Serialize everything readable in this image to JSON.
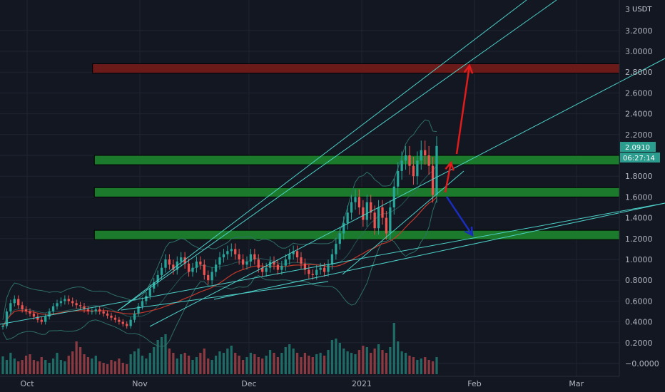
{
  "chart_data": {
    "type": "candlestick",
    "quote_unit": "USDT",
    "axis_max_label": "3",
    "price_label": "2.0910",
    "countdown_label": "06:27:14",
    "y_ticks": [
      3.2,
      3.0,
      2.8,
      2.6,
      2.4,
      2.2,
      2.0,
      1.8,
      1.6,
      1.4,
      1.2,
      1.0,
      0.8,
      0.6,
      0.4,
      0.2,
      -0.0
    ],
    "y_tick_labels": [
      "3.2000",
      "3.0000",
      "2.8000",
      "2.6000",
      "2.4000",
      "2.2000",
      "2.0000",
      "1.8000",
      "1.6000",
      "1.4000",
      "1.2000",
      "1.0000",
      "0.8000",
      "0.6000",
      "0.4000",
      "0.2000",
      "−0.0000"
    ],
    "ylim": [
      -0.12,
      3.4
    ],
    "x_ticks": [
      {
        "label": "Oct",
        "day": 0
      },
      {
        "label": "Nov",
        "day": 31
      },
      {
        "label": "Dec",
        "day": 61
      },
      {
        "label": "2021",
        "day": 92
      },
      {
        "label": "Feb",
        "day": 123
      },
      {
        "label": "Mar",
        "day": 151
      }
    ],
    "xlim_days": [
      -6,
      165
    ],
    "last_price": 2.091,
    "candle_closes": [
      0.36,
      0.5,
      0.58,
      0.62,
      0.56,
      0.52,
      0.5,
      0.48,
      0.45,
      0.42,
      0.4,
      0.45,
      0.5,
      0.55,
      0.58,
      0.6,
      0.62,
      0.6,
      0.58,
      0.56,
      0.55,
      0.52,
      0.5,
      0.5,
      0.52,
      0.5,
      0.48,
      0.46,
      0.44,
      0.42,
      0.4,
      0.38,
      0.36,
      0.42,
      0.48,
      0.55,
      0.6,
      0.65,
      0.72,
      0.78,
      0.85,
      0.92,
      1.0,
      0.95,
      0.9,
      0.98,
      1.02,
      0.96,
      0.88,
      0.92,
      0.98,
      0.95,
      0.85,
      0.8,
      0.88,
      0.95,
      1.02,
      1.05,
      1.08,
      1.1,
      1.05,
      1.0,
      0.95,
      0.98,
      1.05,
      1.0,
      0.92,
      0.88,
      0.92,
      0.98,
      0.95,
      0.9,
      0.94,
      1.0,
      1.05,
      1.08,
      1.02,
      0.96,
      0.9,
      0.86,
      0.85,
      0.9,
      0.92,
      0.88,
      0.95,
      1.05,
      1.15,
      1.25,
      1.35,
      1.45,
      1.55,
      1.6,
      1.5,
      1.38,
      1.55,
      1.45,
      1.3,
      1.5,
      1.4,
      1.25,
      1.5,
      1.7,
      1.85,
      1.95,
      2.0,
      1.9,
      1.8,
      1.95,
      2.05,
      2.0,
      1.9,
      1.62,
      2.09
    ],
    "volumes": [
      0.25,
      0.2,
      0.3,
      0.22,
      0.18,
      0.2,
      0.26,
      0.28,
      0.2,
      0.18,
      0.24,
      0.2,
      0.16,
      0.22,
      0.3,
      0.2,
      0.18,
      0.26,
      0.32,
      0.46,
      0.38,
      0.28,
      0.24,
      0.22,
      0.26,
      0.18,
      0.16,
      0.14,
      0.2,
      0.18,
      0.22,
      0.16,
      0.14,
      0.28,
      0.32,
      0.36,
      0.26,
      0.22,
      0.3,
      0.38,
      0.48,
      0.52,
      0.56,
      0.36,
      0.3,
      0.22,
      0.28,
      0.3,
      0.26,
      0.2,
      0.24,
      0.3,
      0.36,
      0.22,
      0.2,
      0.26,
      0.32,
      0.3,
      0.36,
      0.4,
      0.3,
      0.26,
      0.2,
      0.24,
      0.3,
      0.28,
      0.24,
      0.22,
      0.26,
      0.34,
      0.3,
      0.24,
      0.3,
      0.38,
      0.42,
      0.36,
      0.3,
      0.24,
      0.3,
      0.26,
      0.24,
      0.28,
      0.3,
      0.26,
      0.34,
      0.48,
      0.5,
      0.44,
      0.36,
      0.32,
      0.3,
      0.28,
      0.34,
      0.4,
      0.38,
      0.3,
      0.36,
      0.42,
      0.34,
      0.3,
      0.38,
      0.72,
      0.46,
      0.32,
      0.3,
      0.26,
      0.24,
      0.2,
      0.22,
      0.24,
      0.2,
      0.18,
      0.24
    ],
    "zones": [
      {
        "name": "resistance-zone",
        "bottom": 2.79,
        "top": 2.88,
        "color": "#6b1a1a",
        "x_start_day": 18
      },
      {
        "name": "support-zone-1",
        "bottom": 1.91,
        "top": 2.0,
        "color": "#1b7a2b",
        "x_start_day": 18.5
      },
      {
        "name": "support-zone-2",
        "bottom": 1.6,
        "top": 1.69,
        "color": "#1b7a2b",
        "x_start_day": 18.5
      },
      {
        "name": "support-zone-3",
        "bottom": 1.19,
        "top": 1.28,
        "color": "#1b7a2b",
        "x_start_day": 18.5
      }
    ],
    "colors": {
      "background": "#131722",
      "grid": "#1f2431",
      "up": "#26a69a",
      "down": "#ef5350",
      "up_volume": "#1f6b66",
      "down_volume": "#8a3a40",
      "trendline": "#4dd0c8",
      "band": "#2f6e68",
      "ema": "#c0392b",
      "arrow_red": "#e31b1b",
      "arrow_blue": "#1a2dbd",
      "price_badge": "#2a9d8f"
    }
  }
}
